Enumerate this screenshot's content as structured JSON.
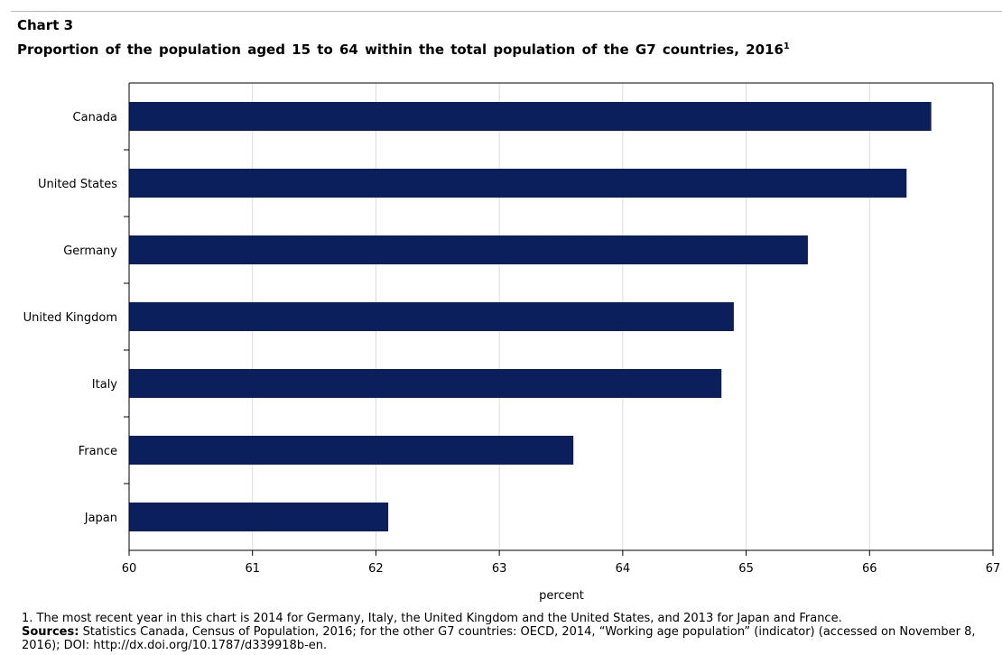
{
  "header": {
    "chart_number": "Chart 3",
    "title": "Proportion of the population aged 15 to 64 within the total population of the G7 countries, 2016",
    "title_note_marker": "1"
  },
  "chart_data": {
    "type": "bar",
    "orientation": "horizontal",
    "categories": [
      "Canada",
      "United States",
      "Germany",
      "United Kingdom",
      "Italy",
      "France",
      "Japan"
    ],
    "values": [
      66.5,
      66.3,
      65.5,
      64.9,
      64.8,
      63.6,
      62.1
    ],
    "xlabel": "percent",
    "xlim": [
      60,
      67
    ],
    "xticks": [
      "60",
      "61",
      "62",
      "63",
      "64",
      "65",
      "66",
      "67"
    ],
    "grid": true,
    "bar_color": "#0a1f5c",
    "grid_color": "#dcdcdc"
  },
  "footnotes": {
    "note_1": "1. The most recent year in this chart is 2014 for Germany, Italy, the United Kingdom and the United States, and 2013 for Japan and France.",
    "sources_label": "Sources:",
    "sources_text": "Statistics Canada, Census of Population, 2016; for the other G7 countries: OECD, 2014, “Working age population” (indicator) (accessed on November 8, 2016); DOI: http://dx.doi.org/10.1787/d339918b-en."
  }
}
